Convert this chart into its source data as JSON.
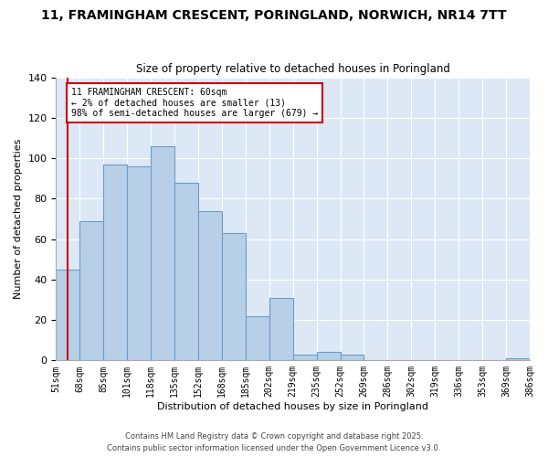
{
  "title": "11, FRAMINGHAM CRESCENT, PORINGLAND, NORWICH, NR14 7TT",
  "subtitle": "Size of property relative to detached houses in Poringland",
  "xlabel": "Distribution of detached houses by size in Poringland",
  "ylabel": "Number of detached properties",
  "categories": [
    "51sqm",
    "68sqm",
    "85sqm",
    "101sqm",
    "118sqm",
    "135sqm",
    "152sqm",
    "168sqm",
    "185sqm",
    "202sqm",
    "219sqm",
    "235sqm",
    "252sqm",
    "269sqm",
    "286sqm",
    "302sqm",
    "319sqm",
    "336sqm",
    "353sqm",
    "369sqm",
    "386sqm"
  ],
  "bin_counts": [
    45,
    69,
    97,
    96,
    106,
    88,
    74,
    63,
    22,
    31,
    3,
    4,
    3,
    0,
    0,
    0,
    0,
    0,
    0,
    1
  ],
  "bar_color": "#b8cfe8",
  "bar_edge_color": "#6b9dc8",
  "bg_color": "#dce8f5",
  "grid_color": "#ffffff",
  "annotation_box_color": "#cc0000",
  "annotation_line_color": "#cc0000",
  "property_bin": 0.5,
  "annotation_title": "11 FRAMINGHAM CRESCENT: 60sqm",
  "annotation_line1": "← 2% of detached houses are smaller (13)",
  "annotation_line2": "98% of semi-detached houses are larger (679) →",
  "ylim": [
    0,
    140
  ],
  "yticks": [
    0,
    20,
    40,
    60,
    80,
    100,
    120,
    140
  ],
  "footer1": "Contains HM Land Registry data © Crown copyright and database right 2025.",
  "footer2": "Contains public sector information licensed under the Open Government Licence v3.0."
}
